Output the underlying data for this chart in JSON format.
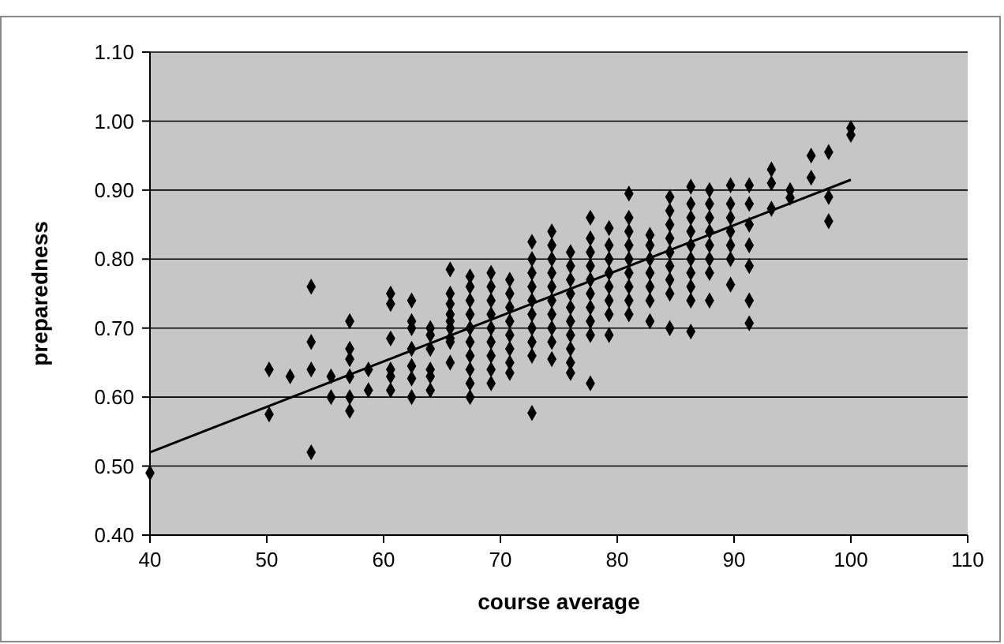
{
  "chart_data": {
    "type": "scatter",
    "xlabel": "course average",
    "ylabel": "preparedness",
    "xlim": [
      40,
      110
    ],
    "xticks": [
      40,
      50,
      60,
      70,
      80,
      90,
      100,
      110
    ],
    "ylim": [
      0.4,
      1.1
    ],
    "yticks": [
      {
        "value": 0.4,
        "label": "0.40"
      },
      {
        "value": 0.5,
        "label": "0.50"
      },
      {
        "value": 0.6,
        "label": "0.60"
      },
      {
        "value": 0.7,
        "label": "0.70"
      },
      {
        "value": 0.8,
        "label": "0.80"
      },
      {
        "value": 0.9,
        "label": "0.90"
      },
      {
        "value": 1.0,
        "label": "1.00"
      },
      {
        "value": 1.1,
        "label": "1.10"
      }
    ],
    "grid": "y",
    "series": [
      {
        "marker": "diamond",
        "color": "#000000",
        "x": [
          40,
          50.2,
          50.2,
          52,
          53.8,
          53.8,
          53.8,
          53.8,
          55.5,
          55.5,
          57.1,
          57.1,
          57.1,
          57.1,
          57.1,
          57.1,
          58.7,
          58.7,
          60.6,
          60.6,
          60.6,
          60.6,
          60.6,
          60.6,
          62.4,
          62.4,
          62.4,
          62.4,
          62.4,
          62.4,
          62.4,
          64,
          64,
          64,
          64,
          64,
          64,
          65.7,
          65.7,
          65.7,
          65.7,
          65.7,
          65.7,
          65.7,
          65.7,
          65.7,
          67.4,
          67.4,
          67.4,
          67.4,
          67.4,
          67.4,
          67.4,
          67.4,
          67.4,
          67.4,
          69.2,
          69.2,
          69.2,
          69.2,
          69.2,
          69.2,
          69.2,
          69.2,
          69.2,
          70.8,
          70.8,
          70.8,
          70.8,
          70.8,
          70.8,
          70.8,
          70.8,
          72.7,
          72.7,
          72.7,
          72.7,
          72.7,
          72.7,
          72.7,
          72.7,
          72.7,
          72.7,
          74.4,
          74.4,
          74.4,
          74.4,
          74.4,
          74.4,
          74.4,
          74.4,
          74.4,
          74.4,
          76,
          76,
          76,
          76,
          76,
          76,
          76,
          76,
          76,
          76,
          77.7,
          77.7,
          77.7,
          77.7,
          77.7,
          77.7,
          77.7,
          77.7,
          77.7,
          77.7,
          79.3,
          79.3,
          79.3,
          79.3,
          79.3,
          79.3,
          79.3,
          79.3,
          81,
          81,
          81,
          81,
          81,
          81,
          81,
          81,
          81,
          82.8,
          82.8,
          82.8,
          82.8,
          82.8,
          82.8,
          82.8,
          84.5,
          84.5,
          84.5,
          84.5,
          84.5,
          84.5,
          84.5,
          84.5,
          84.5,
          86.3,
          86.3,
          86.3,
          86.3,
          86.3,
          86.3,
          86.3,
          86.3,
          86.3,
          86.3,
          87.9,
          87.9,
          87.9,
          87.9,
          87.9,
          87.9,
          87.9,
          87.9,
          89.7,
          89.7,
          89.7,
          89.7,
          89.7,
          89.7,
          89.7,
          91.3,
          91.3,
          91.3,
          91.3,
          91.3,
          91.3,
          91.3,
          93.2,
          93.2,
          93.2,
          94.8,
          94.8,
          96.6,
          96.6,
          98.1,
          98.1,
          98.1,
          100,
          100
        ],
        "values": [
          0.49,
          0.575,
          0.64,
          0.63,
          0.76,
          0.68,
          0.64,
          0.52,
          0.63,
          0.6,
          0.71,
          0.67,
          0.655,
          0.63,
          0.6,
          0.58,
          0.64,
          0.61,
          0.75,
          0.735,
          0.685,
          0.64,
          0.63,
          0.61,
          0.74,
          0.71,
          0.7,
          0.67,
          0.645,
          0.627,
          0.6,
          0.7,
          0.69,
          0.67,
          0.64,
          0.63,
          0.61,
          0.785,
          0.75,
          0.735,
          0.72,
          0.71,
          0.7,
          0.685,
          0.68,
          0.65,
          0.775,
          0.76,
          0.74,
          0.72,
          0.7,
          0.68,
          0.66,
          0.64,
          0.62,
          0.6,
          0.78,
          0.76,
          0.74,
          0.72,
          0.7,
          0.68,
          0.66,
          0.64,
          0.62,
          0.77,
          0.75,
          0.73,
          0.71,
          0.69,
          0.67,
          0.65,
          0.635,
          0.825,
          0.8,
          0.78,
          0.76,
          0.74,
          0.72,
          0.7,
          0.68,
          0.66,
          0.577,
          0.84,
          0.82,
          0.8,
          0.78,
          0.76,
          0.74,
          0.72,
          0.7,
          0.68,
          0.655,
          0.81,
          0.79,
          0.77,
          0.75,
          0.73,
          0.71,
          0.69,
          0.67,
          0.65,
          0.635,
          0.86,
          0.83,
          0.81,
          0.79,
          0.77,
          0.75,
          0.73,
          0.71,
          0.69,
          0.62,
          0.845,
          0.82,
          0.8,
          0.78,
          0.76,
          0.74,
          0.72,
          0.69,
          0.895,
          0.86,
          0.84,
          0.82,
          0.8,
          0.78,
          0.76,
          0.74,
          0.72,
          0.835,
          0.82,
          0.8,
          0.78,
          0.76,
          0.74,
          0.71,
          0.89,
          0.87,
          0.85,
          0.83,
          0.81,
          0.79,
          0.77,
          0.75,
          0.7,
          0.905,
          0.88,
          0.86,
          0.84,
          0.82,
          0.8,
          0.78,
          0.76,
          0.74,
          0.695,
          0.9,
          0.88,
          0.86,
          0.84,
          0.82,
          0.8,
          0.78,
          0.74,
          0.907,
          0.88,
          0.86,
          0.84,
          0.82,
          0.8,
          0.763,
          0.907,
          0.88,
          0.85,
          0.82,
          0.79,
          0.74,
          0.707,
          0.93,
          0.91,
          0.873,
          0.9,
          0.889,
          0.95,
          0.918,
          0.955,
          0.89,
          0.855,
          0.99,
          0.98
        ]
      },
      {
        "type": "line",
        "color": "#000000",
        "x": [
          40,
          100
        ],
        "values": [
          0.52,
          0.915
        ]
      }
    ]
  }
}
